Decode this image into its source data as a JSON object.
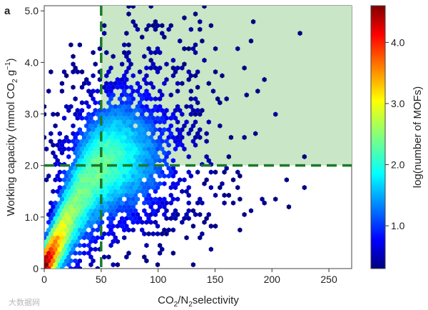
{
  "panel_label": "a",
  "watermark": "大数据网",
  "chart_data": {
    "type": "heatmap",
    "subtype": "hexbin",
    "title": "",
    "xlabel": "CO2/N2selectivity",
    "xlabel_parts": {
      "a": "CO",
      "a_sub": "2",
      "b": "/N",
      "b_sub": "2",
      "c": "selectivity"
    },
    "ylabel": "Working capacity (mmol CO2 g-1)",
    "ylabel_parts": {
      "a": "Working capacity (mmol CO",
      "a_sub": "2",
      "b": " g",
      "b_sup": "−1",
      "c": ")"
    },
    "xlim": [
      0,
      270
    ],
    "ylim": [
      0,
      5.1
    ],
    "xticks": [
      0,
      50,
      100,
      150,
      200,
      250
    ],
    "yticks": [
      0,
      1.0,
      2.0,
      3.0,
      4.0,
      5.0
    ],
    "ytick_labels": [
      "0",
      "1.0",
      "2.0",
      "3.0",
      "4.0",
      "5.0"
    ],
    "thresholds": {
      "selectivity": 50,
      "working_capacity": 2.0
    },
    "threshold_color": "#1a7a2a",
    "shaded_region": {
      "x_min": 50,
      "y_min": 2.0,
      "color": "#c9e6c6"
    },
    "colorbar": {
      "label": "log(number of MOFs)",
      "range": [
        0.3,
        4.6
      ],
      "ticks": [
        1.0,
        2.0,
        3.0,
        4.0
      ],
      "tick_labels": [
        "1.0",
        "2.0",
        "3.0",
        "4.0"
      ],
      "colormap": "jet"
    },
    "dense_trend": [
      {
        "x": 3,
        "y": 0.05,
        "log_count": 4.5
      },
      {
        "x": 8,
        "y": 0.25,
        "log_count": 4.2
      },
      {
        "x": 15,
        "y": 0.55,
        "log_count": 3.6
      },
      {
        "x": 25,
        "y": 1.0,
        "log_count": 3.0
      },
      {
        "x": 35,
        "y": 1.5,
        "log_count": 2.5
      },
      {
        "x": 45,
        "y": 1.9,
        "log_count": 2.2
      },
      {
        "x": 55,
        "y": 2.3,
        "log_count": 1.8
      }
    ]
  }
}
